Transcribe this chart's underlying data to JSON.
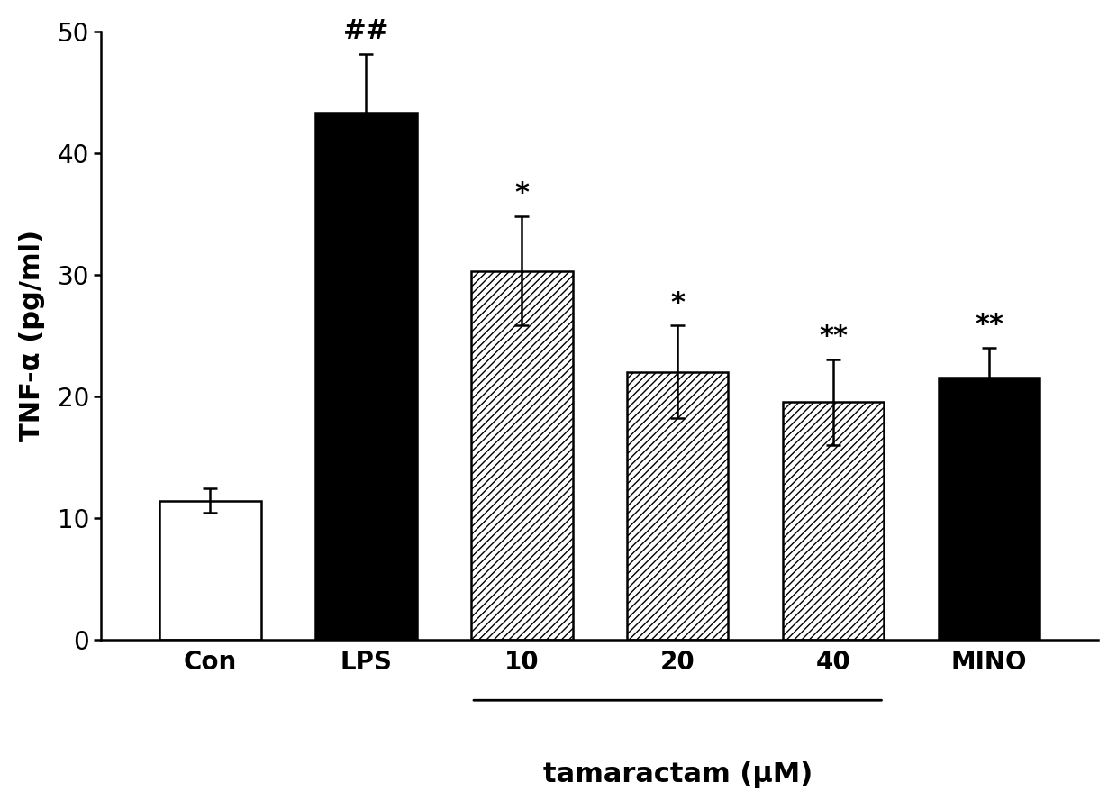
{
  "categories": [
    "Con",
    "LPS",
    "10",
    "20",
    "40",
    "MINO"
  ],
  "values": [
    11.4,
    43.3,
    30.3,
    22.0,
    19.5,
    21.5
  ],
  "errors": [
    1.0,
    4.8,
    4.5,
    3.8,
    3.5,
    2.5
  ],
  "bar_styles": [
    "white",
    "black",
    "hatch",
    "hatch",
    "hatch",
    "black"
  ],
  "hatch_pattern": "////",
  "ylabel": "TNF-α (pg/ml)",
  "ylim": [
    0,
    50
  ],
  "yticks": [
    0,
    10,
    20,
    30,
    40,
    50
  ],
  "xlabel_main": "tamaractam (μM)",
  "significance_labels": [
    "",
    "##",
    "*",
    "*",
    "**",
    "**"
  ],
  "background_color": "#ffffff",
  "bar_width": 0.65,
  "label_fontsize": 22,
  "tick_fontsize": 20,
  "annot_fontsize": 22
}
